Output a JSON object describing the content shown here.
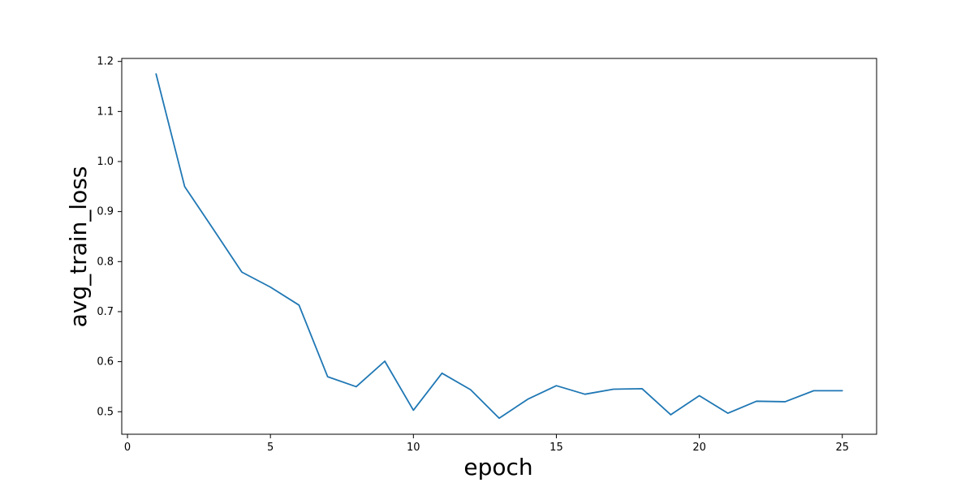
{
  "chart_data": {
    "type": "line",
    "title": "",
    "xlabel": "epoch",
    "ylabel": "avg_train_loss",
    "xlim": [
      -0.2,
      26.2
    ],
    "ylim": [
      0.455,
      1.206
    ],
    "xticks": [
      0,
      5,
      10,
      15,
      20,
      25
    ],
    "yticks": [
      0.5,
      0.6,
      0.7,
      0.8,
      0.9,
      1.0,
      1.1,
      1.2
    ],
    "x_tick_labels": [
      "0",
      "5",
      "10",
      "15",
      "20",
      "25"
    ],
    "y_tick_labels": [
      "0.5",
      "0.6",
      "0.7",
      "0.8",
      "0.9",
      "1.0",
      "1.1",
      "1.2"
    ],
    "grid": false,
    "series": [
      {
        "color": "#1f77b4",
        "x": [
          1,
          2,
          3,
          4,
          5,
          6,
          7,
          8,
          9,
          10,
          11,
          12,
          13,
          14,
          15,
          16,
          17,
          18,
          19,
          20,
          21,
          22,
          23,
          24,
          25
        ],
        "y": [
          1.175,
          0.95,
          0.865,
          0.779,
          0.749,
          0.713,
          0.57,
          0.55,
          0.601,
          0.503,
          0.577,
          0.544,
          0.487,
          0.525,
          0.552,
          0.535,
          0.545,
          0.546,
          0.494,
          0.532,
          0.497,
          0.521,
          0.52,
          0.542,
          0.542
        ]
      }
    ]
  }
}
